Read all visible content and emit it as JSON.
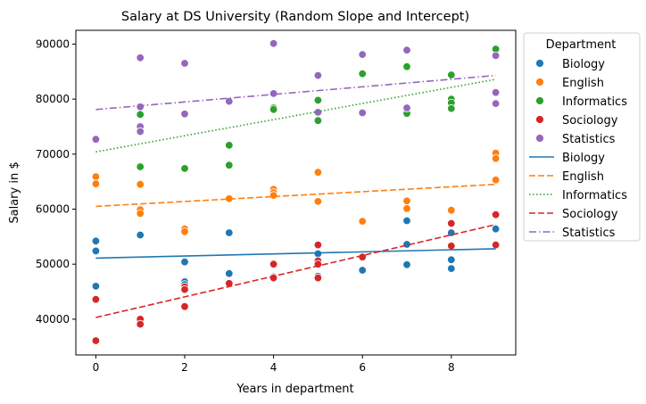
{
  "chart_data": {
    "type": "scatter",
    "title": "Salary at DS University (Random Slope and Intercept)",
    "xlabel": "Years in department",
    "ylabel": "Salary in $",
    "xlim": [
      -0.45,
      9.45
    ],
    "ylim": [
      33500,
      92500
    ],
    "xticks": [
      0,
      2,
      4,
      6,
      8
    ],
    "yticks": [
      40000,
      50000,
      60000,
      70000,
      80000,
      90000
    ],
    "grid": false,
    "legend": {
      "title": "Department",
      "placement": "outside-right-top"
    },
    "scatter_series": [
      {
        "name": "Biology",
        "color": "#1f77b4",
        "points": [
          [
            0,
            54200
          ],
          [
            0,
            52400
          ],
          [
            0,
            46000
          ],
          [
            1,
            55300
          ],
          [
            2,
            50400
          ],
          [
            2,
            46800
          ],
          [
            2,
            46300
          ],
          [
            3,
            55700
          ],
          [
            3,
            48300
          ],
          [
            4,
            47700
          ],
          [
            5,
            51900
          ],
          [
            5,
            47800
          ],
          [
            6,
            48900
          ],
          [
            7,
            57900
          ],
          [
            7,
            53600
          ],
          [
            7,
            49900
          ],
          [
            8,
            55700
          ],
          [
            8,
            50800
          ],
          [
            8,
            49200
          ],
          [
            9,
            56400
          ]
        ]
      },
      {
        "name": "English",
        "color": "#ff7f0e",
        "points": [
          [
            0,
            65900
          ],
          [
            0,
            64600
          ],
          [
            1,
            64500
          ],
          [
            1,
            59900
          ],
          [
            1,
            59200
          ],
          [
            2,
            56400
          ],
          [
            2,
            55900
          ],
          [
            3,
            61900
          ],
          [
            4,
            63600
          ],
          [
            4,
            63000
          ],
          [
            4,
            62500
          ],
          [
            5,
            66700
          ],
          [
            5,
            61400
          ],
          [
            6,
            57800
          ],
          [
            7,
            61500
          ],
          [
            7,
            60100
          ],
          [
            8,
            59800
          ],
          [
            9,
            70200
          ],
          [
            9,
            69200
          ],
          [
            9,
            65300
          ]
        ]
      },
      {
        "name": "Informatics",
        "color": "#2ca02c",
        "points": [
          [
            1,
            77200
          ],
          [
            1,
            67700
          ],
          [
            2,
            67400
          ],
          [
            3,
            71600
          ],
          [
            3,
            68000
          ],
          [
            4,
            78400
          ],
          [
            4,
            78100
          ],
          [
            5,
            79800
          ],
          [
            5,
            76100
          ],
          [
            6,
            84600
          ],
          [
            7,
            85900
          ],
          [
            7,
            77400
          ],
          [
            8,
            84400
          ],
          [
            8,
            80000
          ],
          [
            8,
            79300
          ],
          [
            8,
            78300
          ],
          [
            9,
            89100
          ]
        ]
      },
      {
        "name": "Sociology",
        "color": "#d62728",
        "points": [
          [
            0,
            43600
          ],
          [
            0,
            36100
          ],
          [
            1,
            40000
          ],
          [
            1,
            39100
          ],
          [
            2,
            45900
          ],
          [
            2,
            45400
          ],
          [
            2,
            42300
          ],
          [
            3,
            46500
          ],
          [
            4,
            50000
          ],
          [
            4,
            47700
          ],
          [
            4,
            47500
          ],
          [
            5,
            53500
          ],
          [
            5,
            50600
          ],
          [
            5,
            50000
          ],
          [
            5,
            47500
          ],
          [
            6,
            51300
          ],
          [
            8,
            57400
          ],
          [
            8,
            53300
          ],
          [
            9,
            59000
          ],
          [
            9,
            53500
          ]
        ]
      },
      {
        "name": "Statistics",
        "color": "#9467bd",
        "points": [
          [
            0,
            72700
          ],
          [
            1,
            87500
          ],
          [
            1,
            78600
          ],
          [
            1,
            75000
          ],
          [
            1,
            74100
          ],
          [
            2,
            86500
          ],
          [
            2,
            77300
          ],
          [
            3,
            79600
          ],
          [
            4,
            90100
          ],
          [
            4,
            81000
          ],
          [
            5,
            84300
          ],
          [
            5,
            77600
          ],
          [
            6,
            88100
          ],
          [
            6,
            77500
          ],
          [
            7,
            88900
          ],
          [
            7,
            78400
          ],
          [
            9,
            87900
          ],
          [
            9,
            81200
          ],
          [
            9,
            79200
          ]
        ]
      }
    ],
    "line_series": [
      {
        "name": "Biology",
        "color": "#1f77b4",
        "dash": "solid",
        "x": [
          0,
          9
        ],
        "y": [
          51100,
          52800
        ]
      },
      {
        "name": "English",
        "color": "#ff7f0e",
        "dash": "dashed",
        "x": [
          0,
          9
        ],
        "y": [
          60500,
          64500
        ]
      },
      {
        "name": "Informatics",
        "color": "#2ca02c",
        "dash": "dotted",
        "x": [
          0,
          9
        ],
        "y": [
          70400,
          83600
        ]
      },
      {
        "name": "Sociology",
        "color": "#d62728",
        "dash": "dashed",
        "x": [
          0,
          9
        ],
        "y": [
          40300,
          57200
        ]
      },
      {
        "name": "Statistics",
        "color": "#9467bd",
        "dash": "dashdot",
        "x": [
          0,
          9
        ],
        "y": [
          78100,
          84300
        ]
      }
    ]
  }
}
